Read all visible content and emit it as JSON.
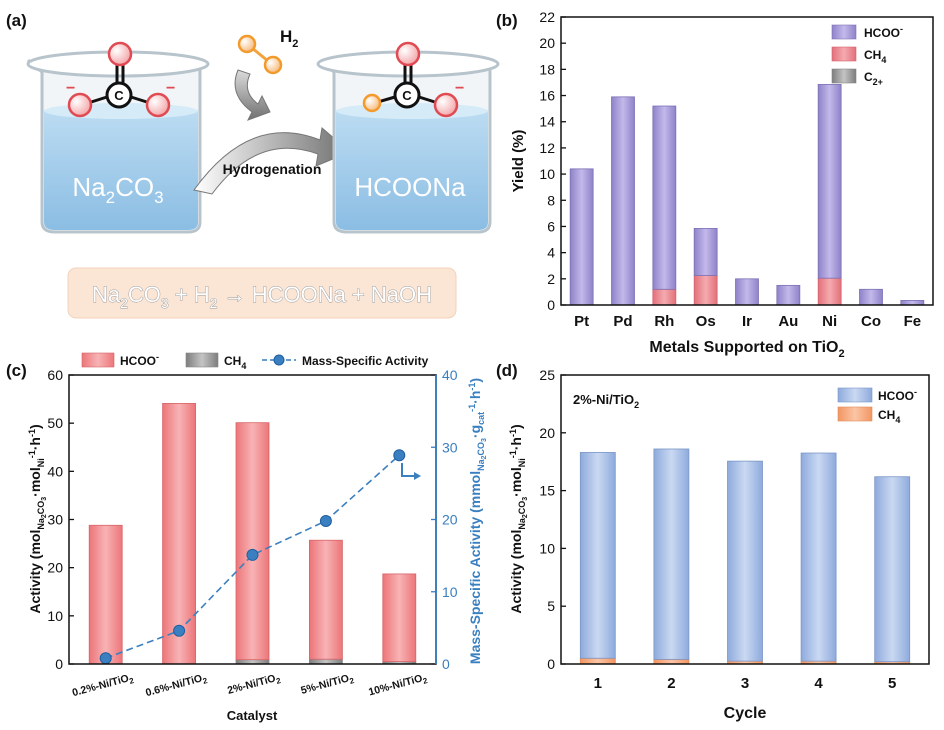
{
  "colors": {
    "hcoo_purple": "#a79bd5",
    "ch4_pink": "#ee8a92",
    "c2_gray": "#a8a8a8",
    "hcoo_red": "#f08a8e",
    "ch4_gray": "#9a9a9a",
    "hcoo_blue": "#a9c0e6",
    "ch4_orange": "#f6a97d",
    "activity_blue": "#3a7fc0",
    "water_blue": "#9cc6e6",
    "equation_box": "#fbe6d6"
  },
  "panel_a": {
    "label": "(a)",
    "h2_label": "H",
    "h2_sub": "2",
    "reactant": {
      "main": "Na",
      "sub1": "2",
      "mid": "CO",
      "sub2": "3"
    },
    "product": "HCOONa",
    "arrow_label": "Hydrogenation",
    "carbon_atom": "C",
    "charge_sign": "−",
    "equation": {
      "p1": "Na",
      "s1": "2",
      "p2": "CO",
      "s2": "3",
      "p3": " + H",
      "s3": "2",
      "p4": " → HCOONa + NaOH"
    }
  },
  "chart_data": [
    {
      "id": "b",
      "type": "bar",
      "stacked": true,
      "panel_label": "(b)",
      "categories": [
        "Pt",
        "Pd",
        "Rh",
        "Os",
        "Ir",
        "Au",
        "Ni",
        "Co",
        "Fe"
      ],
      "series": [
        {
          "name": "HCOO⁻",
          "values": [
            10.4,
            15.9,
            14.0,
            3.6,
            2.0,
            1.5,
            14.8,
            1.2,
            0.35
          ]
        },
        {
          "name": "CH₄",
          "values": [
            0,
            0,
            1.2,
            2.25,
            0,
            0,
            2.05,
            0,
            0
          ]
        },
        {
          "name": "C₂₊",
          "values": [
            0,
            0,
            0,
            0,
            0,
            0,
            0,
            0,
            0
          ]
        }
      ],
      "legend": [
        {
          "base": "HCOO",
          "sup": "-"
        },
        {
          "base": "CH",
          "sub": "4"
        },
        {
          "base": "C",
          "sub": "2+"
        }
      ],
      "legend_position": "top-right",
      "ylabel": "Yield (%)",
      "xlabel": {
        "main": "Metals Supported on TiO",
        "sub": "2"
      },
      "ylim": [
        0,
        22
      ],
      "yticks": [
        0,
        2,
        4,
        6,
        8,
        10,
        12,
        14,
        16,
        18,
        20,
        22
      ]
    },
    {
      "id": "c",
      "type": "bar",
      "stacked": true,
      "secondary_type": "line",
      "panel_label": "(c)",
      "categories": [
        {
          "pre": "0.2%-Ni/TiO",
          "sub": "2"
        },
        {
          "pre": "0.6%-Ni/TiO",
          "sub": "2"
        },
        {
          "pre": "2%-Ni/TiO",
          "sub": "2"
        },
        {
          "pre": "5%-Ni/TiO",
          "sub": "2"
        },
        {
          "pre": "10%-Ni/TiO",
          "sub": "2"
        }
      ],
      "series": [
        {
          "name": "HCOO⁻",
          "values": [
            28.8,
            54.1,
            49.2,
            24.7,
            18.2
          ]
        },
        {
          "name": "CH₄",
          "values": [
            0,
            0,
            0.9,
            1.0,
            0.5
          ]
        }
      ],
      "secondary_series": {
        "name": "Mass-Specific Activity",
        "values": [
          0.8,
          4.6,
          15.1,
          19.8,
          28.9
        ]
      },
      "legend": {
        "hcoo_base": "HCOO",
        "hcoo_sup": "-",
        "ch4_base": "CH",
        "ch4_sub": "4",
        "line": "Mass-Specific Activity"
      },
      "legend_position": "top",
      "xlabel": "Catalyst",
      "ylabel": {
        "p1": "Activity (mol",
        "s1": "Na",
        "s1b": "2",
        "s1c": "CO",
        "s1d": "3",
        "p2": "·mol",
        "s2": "Ni",
        "sup1": "-1",
        "p3": "·h",
        "sup2": "-1",
        "p4": ")"
      },
      "y2label": {
        "p1": "Mass-Specific Activity (mmol",
        "s1": "Na",
        "s1b": "2",
        "s1c": "CO",
        "s1d": "3",
        "p2": "·g",
        "s2": "cat",
        "sup1": "-1",
        "p3": "·h",
        "sup2": "-1",
        "p4": ")"
      },
      "ylim": [
        0,
        60
      ],
      "yticks": [
        0,
        10,
        20,
        30,
        40,
        50,
        60
      ],
      "y2lim": [
        0,
        40
      ],
      "y2ticks": [
        0,
        10,
        20,
        30,
        40
      ]
    },
    {
      "id": "d",
      "type": "bar",
      "stacked": true,
      "panel_label": "(d)",
      "categories": [
        "1",
        "2",
        "3",
        "4",
        "5"
      ],
      "series": [
        {
          "name": "HCOO⁻",
          "values": [
            17.8,
            18.2,
            17.3,
            18.0,
            16.0
          ]
        },
        {
          "name": "CH₄",
          "values": [
            0.5,
            0.4,
            0.25,
            0.25,
            0.2
          ]
        }
      ],
      "legend": [
        {
          "base": "HCOO",
          "sup": "-"
        },
        {
          "base": "CH",
          "sub": "4"
        }
      ],
      "legend_position": "top-right",
      "annotation": {
        "pre": "2%-Ni/TiO",
        "sub": "2"
      },
      "xlabel": "Cycle",
      "ylabel": {
        "p1": "Activity (mol",
        "s1": "Na",
        "s1b": "2",
        "s1c": "CO",
        "s1d": "3",
        "p2": "·mol",
        "s2": "Ni",
        "sup1": "-1",
        "p3": "·h",
        "sup2": "-1",
        "p4": ")"
      },
      "ylim": [
        0,
        25
      ],
      "yticks": [
        0,
        5,
        10,
        15,
        20,
        25
      ]
    }
  ]
}
